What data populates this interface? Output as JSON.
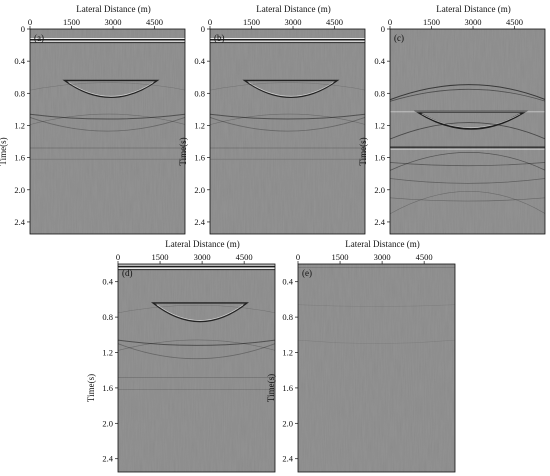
{
  "figure": {
    "panels": [
      {
        "label": "(a)",
        "x_label": "Lateral Distance (m)",
        "y_label": "Time(s)",
        "x_ticks": [
          "0",
          "1500",
          "3000",
          "4500"
        ],
        "y_ticks": [
          "0",
          "0.4",
          "0.8",
          "1.2",
          "1.6",
          "2.0",
          "2.4"
        ]
      },
      {
        "label": "(b)",
        "x_label": "Lateral Distance (m)",
        "y_label": "Time(s)",
        "x_ticks": [
          "0",
          "1500",
          "3000",
          "4500"
        ],
        "y_ticks": [
          "0",
          "0.4",
          "0.8",
          "1.2",
          "1.6",
          "2.0",
          "2.4"
        ]
      },
      {
        "label": "(c)",
        "x_label": "Lateral Distance (m)",
        "y_label": "Time(s)",
        "x_ticks": [
          "0",
          "1500",
          "3000",
          "4500"
        ],
        "y_ticks": [
          "0",
          "0.4",
          "0.8",
          "1.2",
          "1.6",
          "2.0",
          "2.4"
        ]
      },
      {
        "label": "(d)",
        "x_label": "Lateral Distance (m)",
        "y_label": "Time(s)",
        "x_ticks": [
          "0",
          "1500",
          "3000",
          "4500"
        ],
        "y_ticks": [
          "0.4",
          "0.8",
          "1.2",
          "1.6",
          "2.0",
          "2.4"
        ]
      },
      {
        "label": "(e)",
        "x_label": "Lateral Distance (m)",
        "y_label": "Time(s)",
        "x_ticks": [
          "0",
          "1500",
          "3000",
          "4500"
        ],
        "y_ticks": [
          "0.4",
          "0.8",
          "1.2",
          "1.6",
          "2.0",
          "2.4"
        ]
      }
    ],
    "colors": {
      "background": "#8a8a8a",
      "event_dark": "#1c1c1c",
      "event_light": "#f2f2f2",
      "frame": "#111111"
    }
  }
}
